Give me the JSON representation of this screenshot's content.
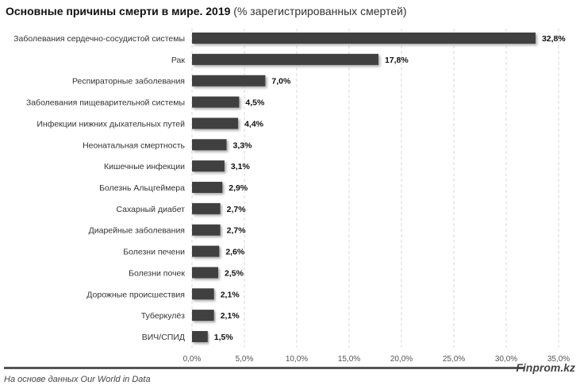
{
  "chart_data": {
    "type": "bar",
    "orientation": "horizontal",
    "title": "Основные причины смерти в мире. 2019",
    "subtitle": "(% зарегистрированных смертей)",
    "categories": [
      "Заболевания сердечно-сосудистой системы",
      "Рак",
      "Респираторные заболевания",
      "Заболевания пищеварительной системы",
      "Инфекции нижних дыхательных путей",
      "Неонатальная смертность",
      "Кишечные инфекции",
      "Болезнь Альцгеймера",
      "Сахарный диабет",
      "Диарейные заболевания",
      "Болезни печени",
      "Болезни почек",
      "Дорожные происшествия",
      "Туберкулёз",
      "ВИЧ/СПИД"
    ],
    "values": [
      32.8,
      17.8,
      7.0,
      4.5,
      4.4,
      3.3,
      3.1,
      2.9,
      2.7,
      2.7,
      2.6,
      2.5,
      2.1,
      2.1,
      1.5
    ],
    "value_labels": [
      "32,8%",
      "17,8%",
      "7,0%",
      "4,5%",
      "4,4%",
      "3,3%",
      "3,1%",
      "2,9%",
      "2,7%",
      "2,7%",
      "2,6%",
      "2,5%",
      "2,1%",
      "2,1%",
      "1,5%"
    ],
    "xlim": [
      0,
      35
    ],
    "xticks": [
      "0,0%",
      "5,0%",
      "10,0%",
      "15,0%",
      "20,0%",
      "25,0%",
      "30,0%",
      "35,0%"
    ],
    "grid": "vertical dashed",
    "bar_color": "#404040"
  },
  "footer": {
    "source": "На основе данных Our World in Data",
    "brand": "Finprom.kz"
  }
}
